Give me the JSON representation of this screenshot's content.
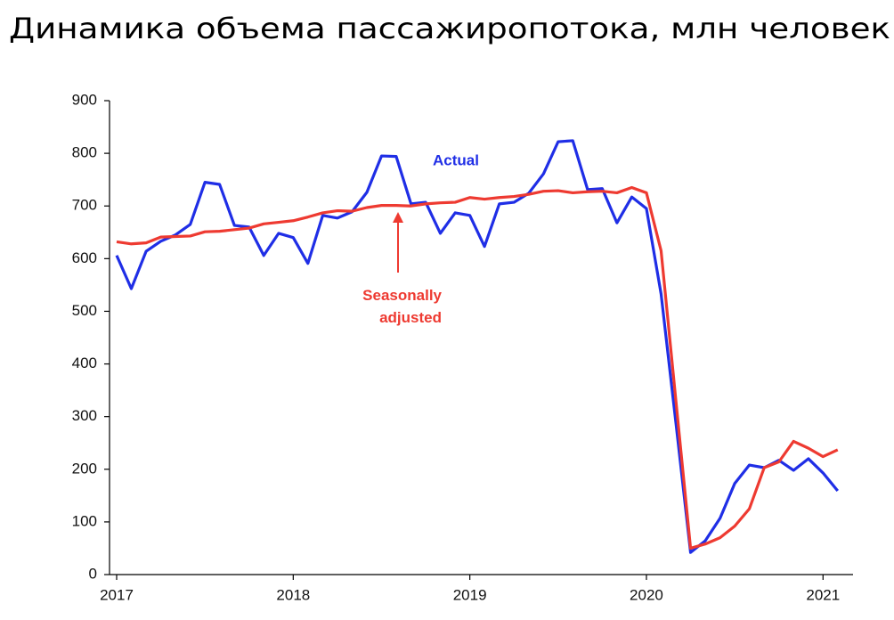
{
  "chart_data": {
    "type": "line",
    "title": "Динамика объема пассажиропотока, млн человек",
    "x": [
      2017,
      2017.083,
      2017.167,
      2017.25,
      2017.333,
      2017.417,
      2017.5,
      2017.583,
      2017.667,
      2017.75,
      2017.833,
      2017.917,
      2018,
      2018.083,
      2018.167,
      2018.25,
      2018.333,
      2018.417,
      2018.5,
      2018.583,
      2018.667,
      2018.75,
      2018.833,
      2018.917,
      2019,
      2019.083,
      2019.167,
      2019.25,
      2019.333,
      2019.417,
      2019.5,
      2019.583,
      2019.667,
      2019.75,
      2019.833,
      2019.917,
      2020,
      2020.083,
      2020.167,
      2020.25,
      2020.333,
      2020.417,
      2020.5,
      2020.583,
      2020.667,
      2020.75,
      2020.833,
      2020.917,
      2021,
      2021.083
    ],
    "series": [
      {
        "name": "Actual",
        "color": "#1f2ee6",
        "values": [
          606,
          543,
          614,
          633,
          645,
          665,
          745,
          741,
          663,
          660,
          606,
          648,
          640,
          591,
          682,
          677,
          689,
          726,
          795,
          794,
          704,
          707,
          648,
          687,
          682,
          623,
          704,
          707,
          724,
          761,
          822,
          824,
          731,
          733,
          668,
          717,
          695,
          533,
          288,
          42,
          64,
          107,
          173,
          208,
          203,
          217,
          198,
          220,
          193,
          159
        ]
      },
      {
        "name": "Seasonally adjusted",
        "color": "#ee3a31",
        "values": [
          632,
          628,
          630,
          641,
          642,
          643,
          651,
          652,
          655,
          658,
          666,
          669,
          672,
          679,
          687,
          691,
          690,
          697,
          701,
          701,
          700,
          704,
          706,
          707,
          716,
          713,
          716,
          718,
          722,
          728,
          729,
          725,
          727,
          728,
          725,
          735,
          725,
          615,
          330,
          50,
          58,
          70,
          92,
          125,
          203,
          214,
          253,
          240,
          224,
          237
        ]
      }
    ],
    "xlim": [
      2017,
      2021.17
    ],
    "xticks": [
      2017,
      2018,
      2019,
      2020,
      2021
    ],
    "ylim": [
      0,
      900
    ],
    "yticks": [
      0,
      100,
      200,
      300,
      400,
      500,
      600,
      700,
      800,
      900
    ],
    "grid": false
  }
}
